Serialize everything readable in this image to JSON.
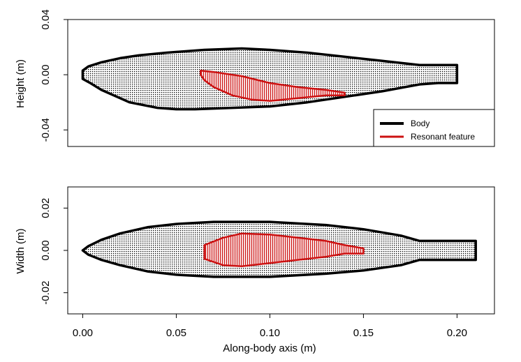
{
  "chart_data": [
    {
      "type": "line",
      "panel": "top",
      "ylabel": "Height (m)",
      "xlim": [
        -0.008,
        0.22
      ],
      "ylim": [
        -0.052,
        0.04
      ],
      "yticks": [
        0.04,
        0.0,
        -0.04
      ],
      "ytick_labels": [
        "0.04",
        "0.00",
        "-0.04"
      ],
      "grid": false,
      "legend": {
        "placement": "bottom-right",
        "entries": [
          {
            "label": "Body",
            "color": "#000000"
          },
          {
            "label": "Resonant feature",
            "color": "#cc1111"
          }
        ]
      },
      "series": [
        {
          "name": "Body",
          "color": "#000000",
          "fill_pattern": "dotted-grid",
          "points": [
            [
              0.0,
              0.003
            ],
            [
              0.003,
              0.006
            ],
            [
              0.01,
              0.009
            ],
            [
              0.02,
              0.012
            ],
            [
              0.03,
              0.014
            ],
            [
              0.045,
              0.016
            ],
            [
              0.065,
              0.018
            ],
            [
              0.085,
              0.019
            ],
            [
              0.1,
              0.018
            ],
            [
              0.12,
              0.016
            ],
            [
              0.14,
              0.013
            ],
            [
              0.16,
              0.01
            ],
            [
              0.18,
              0.007
            ],
            [
              0.19,
              0.007
            ],
            [
              0.2,
              0.007
            ],
            [
              0.2,
              -0.006
            ],
            [
              0.19,
              -0.006
            ],
            [
              0.18,
              -0.007
            ],
            [
              0.16,
              -0.012
            ],
            [
              0.14,
              -0.016
            ],
            [
              0.12,
              -0.02
            ],
            [
              0.1,
              -0.023
            ],
            [
              0.08,
              -0.024
            ],
            [
              0.06,
              -0.025
            ],
            [
              0.05,
              -0.025
            ],
            [
              0.04,
              -0.024
            ],
            [
              0.025,
              -0.02
            ],
            [
              0.01,
              -0.011
            ],
            [
              0.004,
              -0.006
            ],
            [
              0.0,
              -0.003
            ]
          ]
        },
        {
          "name": "Resonant feature",
          "color": "#cc1111",
          "fill_pattern": "vertical-hatch",
          "points": [
            [
              0.063,
              0.003
            ],
            [
              0.07,
              0.002
            ],
            [
              0.085,
              -0.001
            ],
            [
              0.1,
              -0.006
            ],
            [
              0.115,
              -0.009
            ],
            [
              0.13,
              -0.011
            ],
            [
              0.14,
              -0.013
            ],
            [
              0.14,
              -0.015
            ],
            [
              0.13,
              -0.015
            ],
            [
              0.115,
              -0.017
            ],
            [
              0.1,
              -0.019
            ],
            [
              0.09,
              -0.018
            ],
            [
              0.08,
              -0.015
            ],
            [
              0.07,
              -0.009
            ],
            [
              0.065,
              -0.004
            ],
            [
              0.063,
              0.0
            ]
          ]
        }
      ]
    },
    {
      "type": "line",
      "panel": "bottom",
      "xlabel": "Along-body axis (m)",
      "ylabel": "Width (m)",
      "xlim": [
        -0.008,
        0.22
      ],
      "ylim": [
        -0.03,
        0.03
      ],
      "xticks": [
        0.0,
        0.05,
        0.1,
        0.15,
        0.2
      ],
      "xtick_labels": [
        "0.00",
        "0.05",
        "0.10",
        "0.15",
        "0.20"
      ],
      "yticks": [
        0.02,
        0.0,
        -0.02
      ],
      "ytick_labels": [
        "0.02",
        "0.00",
        "-0.02"
      ],
      "grid": false,
      "series": [
        {
          "name": "Body",
          "color": "#000000",
          "fill_pattern": "dotted-grid",
          "points": [
            [
              0.0,
              0.0
            ],
            [
              0.003,
              0.002
            ],
            [
              0.01,
              0.005
            ],
            [
              0.02,
              0.008
            ],
            [
              0.035,
              0.011
            ],
            [
              0.05,
              0.0125
            ],
            [
              0.07,
              0.0135
            ],
            [
              0.1,
              0.0135
            ],
            [
              0.13,
              0.012
            ],
            [
              0.15,
              0.01
            ],
            [
              0.17,
              0.007
            ],
            [
              0.18,
              0.0045
            ],
            [
              0.19,
              0.0045
            ],
            [
              0.21,
              0.0045
            ],
            [
              0.21,
              -0.0045
            ],
            [
              0.19,
              -0.0045
            ],
            [
              0.18,
              -0.0045
            ],
            [
              0.17,
              -0.007
            ],
            [
              0.15,
              -0.0095
            ],
            [
              0.13,
              -0.011
            ],
            [
              0.1,
              -0.0125
            ],
            [
              0.07,
              -0.0125
            ],
            [
              0.05,
              -0.0115
            ],
            [
              0.035,
              -0.01
            ],
            [
              0.02,
              -0.007
            ],
            [
              0.01,
              -0.0045
            ],
            [
              0.003,
              -0.002
            ]
          ]
        },
        {
          "name": "Resonant feature",
          "color": "#cc1111",
          "fill_pattern": "vertical-hatch",
          "points": [
            [
              0.065,
              0.0025
            ],
            [
              0.075,
              0.006
            ],
            [
              0.085,
              0.008
            ],
            [
              0.1,
              0.0075
            ],
            [
              0.115,
              0.006
            ],
            [
              0.13,
              0.0045
            ],
            [
              0.14,
              0.0025
            ],
            [
              0.15,
              0.001
            ],
            [
              0.15,
              -0.0015
            ],
            [
              0.14,
              -0.0015
            ],
            [
              0.13,
              -0.003
            ],
            [
              0.115,
              -0.0045
            ],
            [
              0.1,
              -0.006
            ],
            [
              0.085,
              -0.0075
            ],
            [
              0.075,
              -0.007
            ],
            [
              0.065,
              -0.004
            ]
          ]
        }
      ]
    }
  ]
}
